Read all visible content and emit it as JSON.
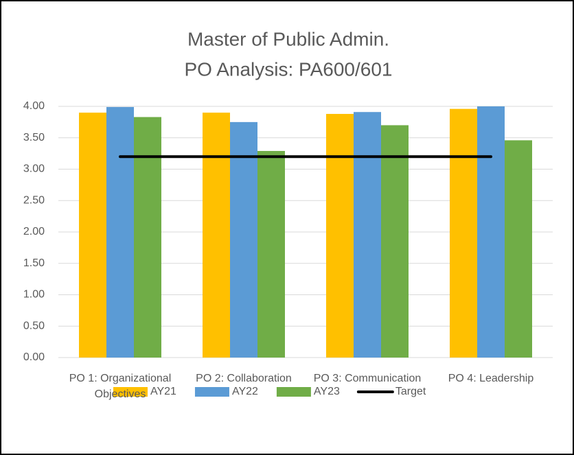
{
  "chart_data": {
    "type": "bar",
    "title": [
      "Master of Public Admin.",
      "PO Analysis: PA600/601"
    ],
    "categories": [
      "PO 1: Organizational Objectives",
      "PO 2: Collaboration",
      "PO 3: Communication",
      "PO 4: Leadership"
    ],
    "series": [
      {
        "name": "AY21",
        "color": "#FFC000",
        "values": [
          3.9,
          3.9,
          3.88,
          3.96
        ]
      },
      {
        "name": "AY22",
        "color": "#5B9BD5",
        "values": [
          3.99,
          3.75,
          3.91,
          4.0
        ]
      },
      {
        "name": "AY23",
        "color": "#70AD47",
        "values": [
          3.83,
          3.29,
          3.7,
          3.46
        ]
      },
      {
        "name": "Target",
        "color": "#000000",
        "type": "line",
        "values": [
          3.2,
          3.2,
          3.2,
          3.2
        ]
      }
    ],
    "ylim": [
      0,
      4
    ],
    "yticks": [
      {
        "value": 0,
        "label": "0.00"
      },
      {
        "value": 0.5,
        "label": "0.50"
      },
      {
        "value": 1,
        "label": "1.00"
      },
      {
        "value": 1.5,
        "label": "1.50"
      },
      {
        "value": 2,
        "label": "2.00"
      },
      {
        "value": 2.5,
        "label": "2.50"
      },
      {
        "value": 3,
        "label": "3.00"
      },
      {
        "value": 3.5,
        "label": "3.50"
      },
      {
        "value": 4,
        "label": "4.00"
      }
    ],
    "grid": true,
    "legend": "bottom"
  }
}
